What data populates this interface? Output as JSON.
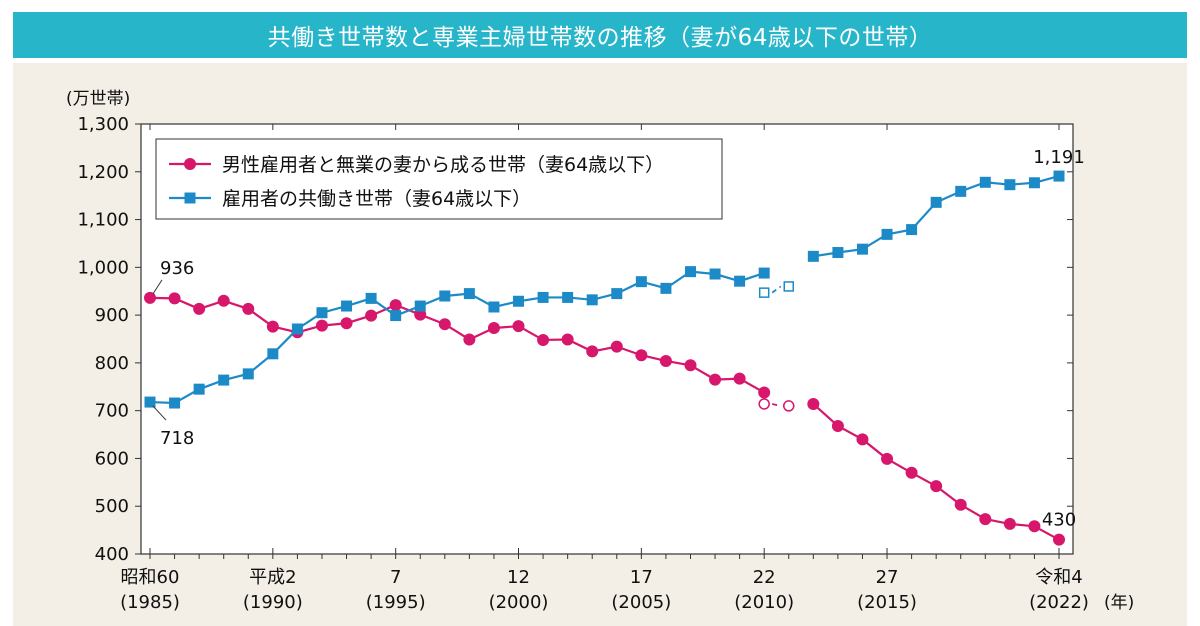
{
  "chart_data": {
    "type": "line",
    "title": "共働き世帯数と専業主婦世帯数の推移（妻が64歳以下の世帯）",
    "y_unit_label": "(万世帯)",
    "x_unit_label": "(年)",
    "ylim": [
      400,
      1300
    ],
    "yticks": [
      400,
      500,
      600,
      700,
      800,
      900,
      1000,
      1100,
      1200,
      1300
    ],
    "ytick_labels": [
      "400",
      "500",
      "600",
      "700",
      "800",
      "900",
      "1,000",
      "1,100",
      "1,200",
      "1,300"
    ],
    "xlim": [
      1985,
      2022
    ],
    "xticks": [
      {
        "year": 1985,
        "era": "昭和60",
        "western": "(1985)"
      },
      {
        "year": 1990,
        "era": "平成2",
        "western": "(1990)"
      },
      {
        "year": 1995,
        "era": "7",
        "western": "(1995)"
      },
      {
        "year": 2000,
        "era": "12",
        "western": "(2000)"
      },
      {
        "year": 2005,
        "era": "17",
        "western": "(2005)"
      },
      {
        "year": 2010,
        "era": "22",
        "western": "(2010)"
      },
      {
        "year": 2015,
        "era": "27",
        "western": "(2015)"
      },
      {
        "year": 2022,
        "era": "令和4",
        "western": "(2022)"
      }
    ],
    "grid": false,
    "legend_position": "top-left",
    "series": [
      {
        "name": "男性雇用者と無業の妻から成る世帯（妻64歳以下）",
        "color": "#d6176c",
        "marker": "circle",
        "segments": [
          {
            "x": [
              1985,
              1986,
              1987,
              1988,
              1989,
              1990,
              1991,
              1992,
              1993,
              1994,
              1995,
              1996,
              1997,
              1998,
              1999,
              2000,
              2001,
              2002,
              2003,
              2004,
              2005,
              2006,
              2007,
              2008,
              2009,
              2010
            ],
            "y": [
              936,
              935,
              913,
              930,
              913,
              876,
              864,
              878,
              883,
              899,
              921,
              901,
              881,
              849,
              873,
              877,
              848,
              849,
              824,
              834,
              816,
              804,
              795,
              765,
              767,
              738
            ]
          },
          {
            "x": [
              2012,
              2013,
              2014,
              2015,
              2016,
              2017,
              2018,
              2019,
              2020,
              2021,
              2022
            ],
            "y": [
              714,
              668,
              640,
              599,
              570,
              542,
              503,
              473,
              463,
              458,
              430
            ]
          }
        ],
        "estimated": {
          "x": [
            2010,
            2011
          ],
          "y": [
            714,
            710
          ]
        }
      },
      {
        "name": "雇用者の共働き世帯（妻64歳以下）",
        "color": "#1d8ac8",
        "marker": "square",
        "segments": [
          {
            "x": [
              1985,
              1986,
              1987,
              1988,
              1989,
              1990,
              1991,
              1992,
              1993,
              1994,
              1995,
              1996,
              1997,
              1998,
              1999,
              2000,
              2001,
              2002,
              2003,
              2004,
              2005,
              2006,
              2007,
              2008,
              2009,
              2010
            ],
            "y": [
              718,
              716,
              745,
              764,
              777,
              819,
              871,
              905,
              919,
              935,
              899,
              919,
              940,
              945,
              917,
              929,
              937,
              937,
              932,
              945,
              970,
              956,
              991,
              986,
              971,
              988
            ]
          },
          {
            "x": [
              2012,
              2013,
              2014,
              2015,
              2016,
              2017,
              2018,
              2019,
              2020,
              2021,
              2022
            ],
            "y": [
              1023,
              1031,
              1038,
              1069,
              1079,
              1136,
              1159,
              1178,
              1173,
              1177,
              1191
            ]
          }
        ],
        "estimated": {
          "x": [
            2010,
            2011
          ],
          "y": [
            947,
            960
          ]
        }
      }
    ],
    "annotations": [
      {
        "text": "936",
        "x": 1985,
        "y": 936
      },
      {
        "text": "718",
        "x": 1985,
        "y": 718
      },
      {
        "text": "1,191",
        "x": 2022,
        "y": 1191
      },
      {
        "text": "430",
        "x": 2022,
        "y": 430
      }
    ]
  }
}
